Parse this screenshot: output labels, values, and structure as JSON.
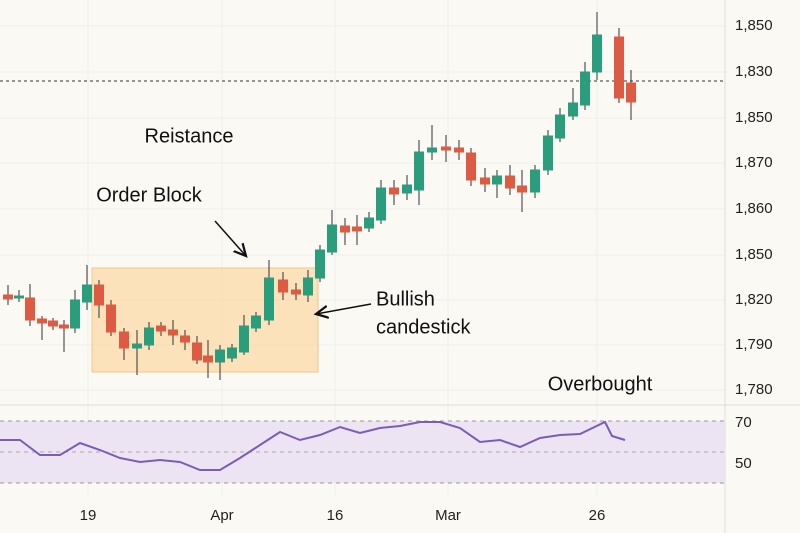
{
  "chart_data": {
    "type": "candlestick",
    "annotations": {
      "resistance": "Reistance",
      "order_block": "Order Block",
      "bullish_1": "Bullish",
      "bullish_2": "candestick",
      "overbought": "Overbought"
    },
    "price_axis_labels": [
      "1,850",
      "1,830",
      "1,850",
      "1,870",
      "1,860",
      "1,850",
      "1,820",
      "1,790",
      "1,780"
    ],
    "rsi_axis_labels": [
      "70",
      "50"
    ],
    "x_labels": [
      "19",
      "Apr",
      "16",
      "Mar",
      "26"
    ]
  }
}
